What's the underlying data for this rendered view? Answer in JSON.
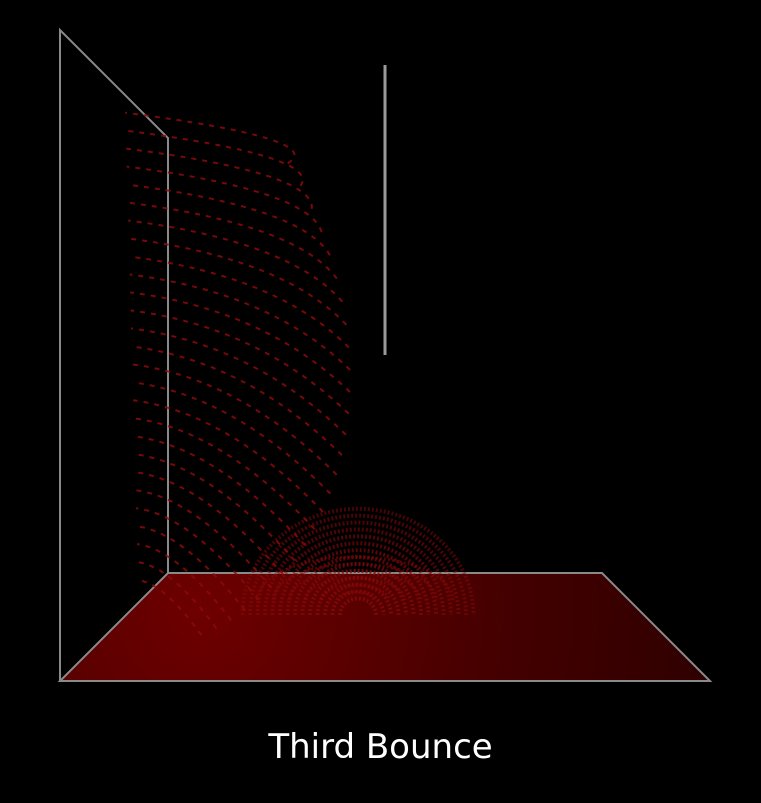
{
  "caption": "Third Bounce",
  "colors": {
    "background": "#000000",
    "frame": "#8a8a8a",
    "wave": "#8b0a0a",
    "floor_bright": "#6e0000",
    "floor_dark": "#2a0000",
    "caption": "#ffffff"
  }
}
